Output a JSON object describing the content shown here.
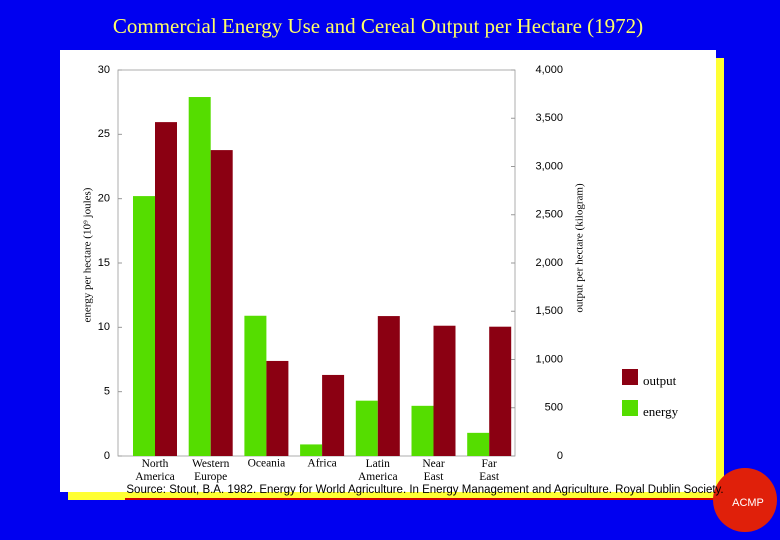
{
  "chart_data": {
    "type": "bar",
    "title": "Commercial Energy Use and Cereal Output per Hectare (1972)",
    "y_label": "energy per hectare (10⁹ joules)",
    "y2_label": "output per hectare (kilogram)",
    "categories": [
      "North America",
      "Western Europe",
      "Oceania",
      "Africa",
      "Latin America",
      "Near East",
      "Far East"
    ],
    "series": [
      {
        "name": "energy",
        "color": "#55dd00",
        "values": [
          20.2,
          27.9,
          10.9,
          0.9,
          4.3,
          3.9,
          1.8
        ]
      },
      {
        "name": "output",
        "color": "#8b0012",
        "axis": "y2",
        "values": [
          3460,
          3170,
          985,
          840,
          1450,
          1350,
          1340
        ]
      }
    ],
    "ylim": [
      0,
      30
    ],
    "yticks": [
      0,
      5,
      10,
      15,
      20,
      25,
      30
    ],
    "y2lim": [
      0,
      4000
    ],
    "y2ticks": [
      0,
      500,
      {
        "value": 1000,
        "label": "1,000"
      },
      {
        "value": 1500,
        "label": "1,500"
      },
      {
        "value": 2000,
        "label": "2,000"
      },
      {
        "value": 2500,
        "label": "2,500"
      },
      {
        "value": 3000,
        "label": "3,000"
      },
      {
        "value": 3500,
        "label": "3,500"
      },
      {
        "value": 4000,
        "label": "4,000"
      }
    ],
    "source": "Source: Stout, B.A. 1982.  Energy for World Agriculture.  In Energy Management and Agriculture.  Royal Dublin Society.",
    "logo": "ACMP"
  }
}
